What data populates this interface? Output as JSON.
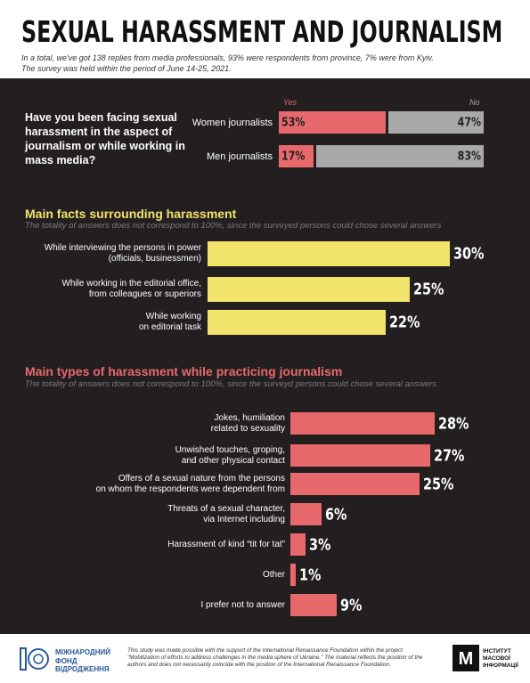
{
  "header": {
    "title": "SEXUAL HARASSMENT AND JOURNALISM",
    "subtitle": [
      "In a total, we've got 138 replies from media professionals, 93% were respondents from province, 7% were from Kyiv.",
      "The survey was held within the period of June 14-25, 2021."
    ]
  },
  "chart_data": [
    {
      "type": "stacked-bar",
      "title": "Have you been facing sexual harassment in the aspect of journalism or while working in mass media?",
      "categories": [
        "Women journalists",
        "Men journalists"
      ],
      "series": [
        {
          "name": "Yes",
          "color": "#e8696b",
          "values": [
            53,
            17
          ],
          "value_labels": [
            "53%",
            "17%"
          ]
        },
        {
          "name": "No",
          "color": "#a9a9a9",
          "values": [
            47,
            83
          ],
          "value_labels": [
            "47%",
            "83%"
          ]
        }
      ]
    },
    {
      "type": "bar",
      "title": "Main facts surrounding harassment",
      "subtitle": "The totality of answers does not correspond to 100%, since the surveyed persons could chose several answers",
      "categories": [
        "While interviewing the persons in power\n(officials, businessmen)",
        "While working in the editorial office,\nfrom colleagues or superiors",
        "While working\non editorial task"
      ],
      "values": [
        30,
        25,
        22
      ],
      "value_labels": [
        "30%",
        "25%",
        "22%"
      ],
      "color": "#f2e36b"
    },
    {
      "type": "bar",
      "title": "Main types of harassment while practicing journalism",
      "subtitle": "The totality of answers does not correspond to 100%, since the surveyd persons could chose several answers",
      "categories": [
        "Jokes, humiliation\nrelated to sexuality",
        "Unwished touches, groping,\nand other physical contact",
        "Offers of a sexual nature from the persons\non whom the respondents were dependent from",
        "Threats of a sexual character,\nvia Internet including",
        "Harassment of kind “tit for tat”",
        "Other",
        "I prefer not to answer"
      ],
      "values": [
        28,
        27,
        25,
        6,
        3,
        1,
        9
      ],
      "value_labels": [
        "28%",
        "27%",
        "25%",
        "6%",
        "3%",
        "1%",
        "9%"
      ],
      "color": "#e8696b"
    }
  ],
  "footer": {
    "left_logo": "МІЖНАРОДНИЙ\nФОНД\nВІДРОДЖЕННЯ",
    "note": "This study was made possible with the support of the International Renaissance Foundation within the project \"Mobilization of efforts to address challenges in the media sphere of Ukraine.\" The material reflects the position of the authors and does not necessarily coincide with the position of the International Renaissance Foundation.",
    "right_logo": "ІНСТИТУТ\nМАСОВОЇ\nІНФОРМАЦІЇ"
  }
}
